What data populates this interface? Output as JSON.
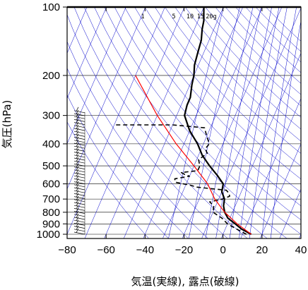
{
  "chart_data": {
    "type": "skew-t",
    "xlabel": "気温(実線), 露点(破線)",
    "ylabel": "気圧(hPa)",
    "x_ticks": [
      -80,
      -60,
      -40,
      -20,
      0,
      20,
      40
    ],
    "y_ticks": [
      100,
      200,
      300,
      400,
      500,
      600,
      700,
      800,
      900,
      1000
    ],
    "xlim": [
      -80,
      40
    ],
    "ylim": [
      1050,
      100
    ],
    "y_scale": "log",
    "mixing_ratio_labels": [
      "1",
      "5",
      "10",
      "15",
      "20g"
    ],
    "colors": {
      "temperature": "#000000",
      "dewpoint": "#000000",
      "parcel": "#ff0000",
      "guide_lines": "#0000cc",
      "frame": "#000000"
    },
    "series": [
      {
        "key": "temperature",
        "style": "solid",
        "points": [
          [
            1000,
            14.5
          ],
          [
            950,
            8.5
          ],
          [
            900,
            4
          ],
          [
            850,
            -1
          ],
          [
            800,
            -4
          ],
          [
            750,
            -6
          ],
          [
            700,
            -7
          ],
          [
            650,
            -10
          ],
          [
            600,
            -11
          ],
          [
            550,
            -16
          ],
          [
            500,
            -22
          ],
          [
            450,
            -28
          ],
          [
            400,
            -33
          ],
          [
            350,
            -40
          ],
          [
            300,
            -46
          ],
          [
            270,
            -47
          ],
          [
            250,
            -47
          ],
          [
            220,
            -49
          ],
          [
            200,
            -50
          ],
          [
            180,
            -52
          ],
          [
            160,
            -53
          ],
          [
            140,
            -54
          ],
          [
            125,
            -56
          ],
          [
            115,
            -57
          ],
          [
            105,
            -59
          ],
          [
            100,
            -60
          ]
        ]
      },
      {
        "key": "dewpoint",
        "style": "dashed",
        "points": [
          [
            1000,
            12
          ],
          [
            950,
            6
          ],
          [
            900,
            0
          ],
          [
            850,
            -4
          ],
          [
            800,
            -10
          ],
          [
            750,
            -11
          ],
          [
            720,
            -14
          ],
          [
            700,
            -8
          ],
          [
            680,
            -5
          ],
          [
            660,
            -6
          ],
          [
            640,
            -8
          ],
          [
            620,
            -24
          ],
          [
            610,
            -27
          ],
          [
            590,
            -36
          ],
          [
            570,
            -37
          ],
          [
            555,
            -30
          ],
          [
            545,
            -33
          ],
          [
            535,
            -35
          ],
          [
            525,
            -27
          ],
          [
            500,
            -27
          ],
          [
            470,
            -29
          ],
          [
            440,
            -26
          ],
          [
            420,
            -28
          ],
          [
            400,
            -27
          ],
          [
            370,
            -30
          ],
          [
            340,
            -33
          ],
          [
            330,
            -50
          ],
          [
            330,
            -80
          ]
        ]
      },
      {
        "key": "parcel",
        "style": "solid",
        "points": [
          [
            1000,
            14.5
          ],
          [
            900,
            5
          ],
          [
            800,
            -4
          ],
          [
            700,
            -12
          ],
          [
            600,
            -19
          ],
          [
            500,
            -30
          ],
          [
            400,
            -44
          ],
          [
            300,
            -60
          ],
          [
            200,
            -80
          ]
        ]
      }
    ],
    "wind_barbs": {
      "pressure_range": [
        1000,
        290
      ],
      "description": "stack of wind barbs drawn along the left edge near x = -80"
    }
  }
}
